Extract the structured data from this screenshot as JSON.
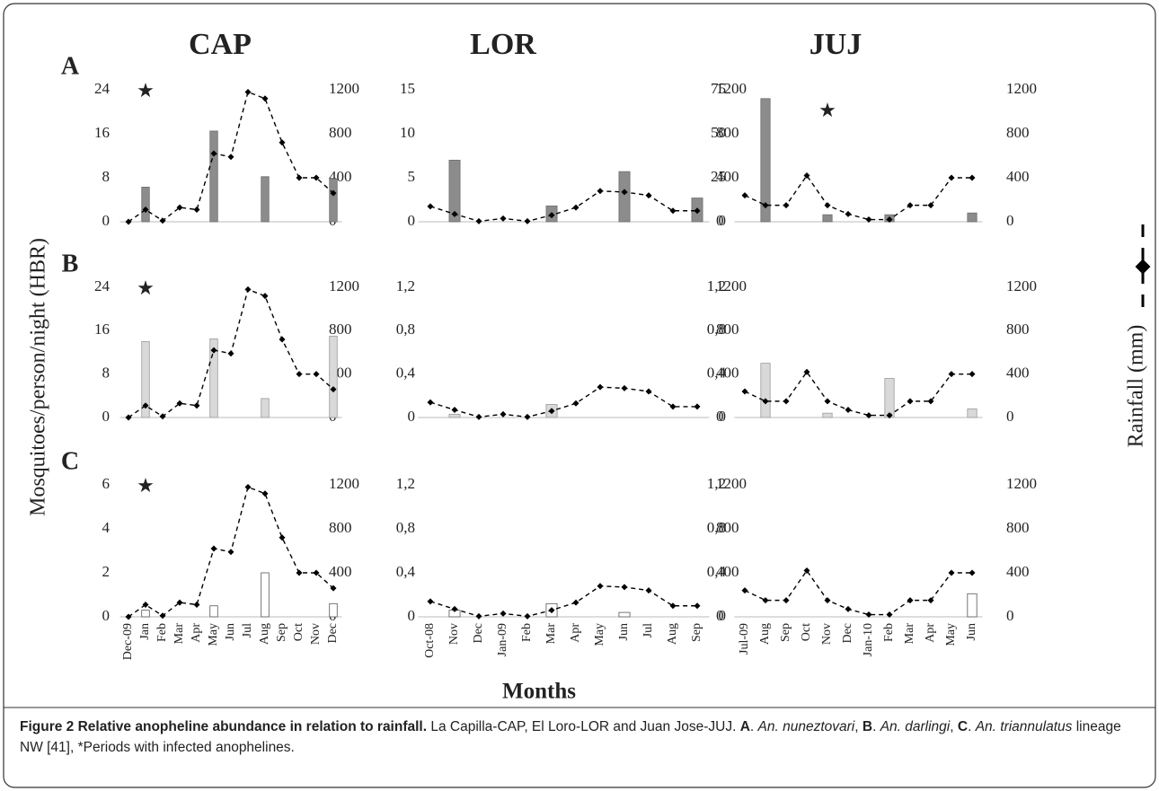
{
  "y_label": "Mosquitoes/person/night (HBR)",
  "y2_label": "Rainfall (mm)",
  "x_label": "Months",
  "caption": [
    {
      "text": "Figure 2 Relative anopheline abundance in relation to rainfall.",
      "style": "bold"
    },
    {
      "text": " La Capilla-CAP, El Loro-LOR and Juan Jose-JUJ. ",
      "style": "normal"
    },
    {
      "text": "A",
      "style": "bold"
    },
    {
      "text": ". ",
      "style": "normal"
    },
    {
      "text": "An. nuneztovari",
      "style": "italic"
    },
    {
      "text": ", ",
      "style": "normal"
    },
    {
      "text": "B",
      "style": "bold"
    },
    {
      "text": ". ",
      "style": "normal"
    },
    {
      "text": "An. darlingi",
      "style": "italic"
    },
    {
      "text": ", ",
      "style": "normal"
    },
    {
      "text": "C",
      "style": "bold"
    },
    {
      "text": ". ",
      "style": "normal"
    },
    {
      "text": "An. triannulatus",
      "style": "italic"
    },
    {
      "text": " lineage NW [41], *Periods with infected anophelines.",
      "style": "normal"
    }
  ],
  "chart_data": [
    {
      "type": "bar-line",
      "title": "CAP",
      "panel": "A",
      "categories": [
        "Dec-09",
        "Jan",
        "Feb",
        "Mar",
        "Apr",
        "May",
        "Jun",
        "Jul",
        "Aug",
        "Sep",
        "Oct",
        "Nov",
        "Dec"
      ],
      "series": [
        {
          "color": "#8c8c8c",
          "edgecolor": "#6e6e6e",
          "values": [
            0,
            6.3,
            0,
            0,
            0,
            16.5,
            0,
            0,
            8.2,
            0,
            0,
            0,
            7.8
          ]
        },
        {
          "color": "#000000",
          "axis": "y2",
          "values": [
            0,
            110,
            10,
            130,
            110,
            620,
            590,
            1180,
            1120,
            720,
            400,
            400,
            260
          ]
        }
      ],
      "ylim": [
        0,
        24
      ],
      "yticks": [
        0,
        8,
        16,
        24
      ],
      "y2lim": [
        0,
        1200
      ],
      "y2ticks": [
        0,
        400,
        800,
        1200
      ],
      "annotations": [
        {
          "text": "★",
          "category": "Jan"
        }
      ]
    },
    {
      "type": "bar-line",
      "title": "LOR",
      "categories": [
        "Oct-08",
        "Nov",
        "Dec",
        "Jan-09",
        "Feb",
        "Mar",
        "Apr",
        "May",
        "Jun",
        "Jul",
        "Aug",
        "Sep"
      ],
      "series": [
        {
          "color": "#8c8c8c",
          "edgecolor": "#6e6e6e",
          "values": [
            0,
            7,
            0,
            0,
            0,
            1.8,
            0,
            0,
            5.7,
            0,
            0,
            2.7
          ]
        },
        {
          "color": "#000000",
          "axis": "y2",
          "values": [
            140,
            70,
            5,
            30,
            5,
            60,
            130,
            280,
            270,
            240,
            100,
            100
          ]
        }
      ],
      "ylim": [
        0,
        15
      ],
      "yticks": [
        0,
        5,
        10,
        15
      ],
      "y2lim": [
        0,
        1200
      ],
      "y2ticks": [
        0,
        400,
        800,
        1200
      ]
    },
    {
      "type": "bar-line",
      "title": "JUJ",
      "categories": [
        "Jul-09",
        "Aug",
        "Sep",
        "Oct",
        "Nov",
        "Dec",
        "Jan-10",
        "Feb",
        "Mar",
        "Apr",
        "May",
        "Jun"
      ],
      "series": [
        {
          "color": "#8c8c8c",
          "edgecolor": "#6e6e6e",
          "values": [
            0,
            70,
            0,
            0,
            4,
            0,
            0,
            4,
            0,
            0,
            0,
            5
          ]
        },
        {
          "color": "#000000",
          "axis": "y2",
          "values": [
            240,
            150,
            150,
            420,
            150,
            70,
            20,
            20,
            150,
            150,
            400,
            400
          ]
        }
      ],
      "ylim": [
        0,
        75
      ],
      "yticks": [
        0,
        25,
        50,
        75
      ],
      "y2lim": [
        0,
        1200
      ],
      "y2ticks": [
        0,
        400,
        800,
        1200
      ],
      "annotations": [
        {
          "text": "★",
          "category": "Nov"
        }
      ]
    },
    {
      "type": "bar-line",
      "panel": "B",
      "categories": [
        "Dec-09",
        "Jan",
        "Feb",
        "Mar",
        "Apr",
        "May",
        "Jun",
        "Jul",
        "Aug",
        "Sep",
        "Oct",
        "Nov",
        "Dec"
      ],
      "series": [
        {
          "color": "#d9d9d9",
          "edgecolor": "#9a9a9a",
          "values": [
            0,
            14,
            0,
            0,
            0,
            14.5,
            0,
            0,
            3.5,
            0,
            0,
            0,
            15
          ]
        },
        {
          "color": "#000000",
          "axis": "y2",
          "values": [
            0,
            110,
            10,
            130,
            110,
            620,
            590,
            1180,
            1120,
            720,
            400,
            400,
            260
          ]
        }
      ],
      "ylim": [
        0,
        24
      ],
      "yticks": [
        0,
        8,
        16,
        24
      ],
      "y2lim": [
        0,
        1200
      ],
      "y2ticks": [
        0,
        400,
        800,
        1200
      ],
      "annotations": [
        {
          "text": "★",
          "category": "Jan"
        }
      ]
    },
    {
      "type": "bar-line",
      "categories": [
        "Oct-08",
        "Nov",
        "Dec",
        "Jan-09",
        "Feb",
        "Mar",
        "Apr",
        "May",
        "Jun",
        "Jul",
        "Aug",
        "Sep"
      ],
      "series": [
        {
          "color": "#d9d9d9",
          "edgecolor": "#9a9a9a",
          "values": [
            0,
            0.03,
            0,
            0,
            0,
            0.12,
            0,
            0,
            0,
            0,
            0,
            0
          ]
        },
        {
          "color": "#000000",
          "axis": "y2",
          "values": [
            140,
            70,
            5,
            30,
            5,
            60,
            130,
            280,
            270,
            240,
            100,
            100
          ]
        }
      ],
      "ylim": [
        0,
        1.2
      ],
      "yticks": [
        0,
        {
          "value": 0.4,
          "label": "0,4"
        },
        {
          "value": 0.8,
          "label": "0,8"
        },
        {
          "value": 1.2,
          "label": "1,2"
        }
      ],
      "y2lim": [
        0,
        1200
      ],
      "y2ticks": [
        0,
        400,
        800,
        1200
      ]
    },
    {
      "type": "bar-line",
      "categories": [
        "Jul-09",
        "Aug",
        "Sep",
        "Oct",
        "Nov",
        "Dec",
        "Jan-10",
        "Feb",
        "Mar",
        "Apr",
        "May",
        "Jun"
      ],
      "series": [
        {
          "color": "#d9d9d9",
          "edgecolor": "#9a9a9a",
          "values": [
            0,
            0.5,
            0,
            0,
            0.04,
            0,
            0,
            0.36,
            0,
            0,
            0,
            0.08
          ]
        },
        {
          "color": "#000000",
          "axis": "y2",
          "values": [
            240,
            150,
            150,
            420,
            150,
            70,
            20,
            20,
            150,
            150,
            400,
            400
          ]
        }
      ],
      "ylim": [
        0,
        1.2
      ],
      "yticks": [
        0,
        {
          "value": 0.4,
          "label": "0,4"
        },
        {
          "value": 0.8,
          "label": "0,8"
        },
        {
          "value": 1.2,
          "label": "1,2"
        }
      ],
      "y2lim": [
        0,
        1200
      ],
      "y2ticks": [
        0,
        400,
        800,
        1200
      ]
    },
    {
      "type": "bar-line",
      "panel": "C",
      "categories": [
        "Dec-09",
        "Jan",
        "Feb",
        "Mar",
        "Apr",
        "May",
        "Jun",
        "Jul",
        "Aug",
        "Sep",
        "Oct",
        "Nov",
        "Dec"
      ],
      "series": [
        {
          "color": "#ffffff",
          "edgecolor": "#555555",
          "values": [
            0,
            0.3,
            0,
            0,
            0,
            0.5,
            0,
            0,
            2,
            0,
            0,
            0,
            0.6
          ]
        },
        {
          "color": "#000000",
          "axis": "y2",
          "values": [
            0,
            110,
            10,
            130,
            110,
            620,
            590,
            1180,
            1120,
            720,
            400,
            400,
            260
          ]
        }
      ],
      "ylim": [
        0,
        6
      ],
      "yticks": [
        0,
        2,
        4,
        6
      ],
      "y2lim": [
        0,
        1200
      ],
      "y2ticks": [
        0,
        400,
        800,
        1200
      ],
      "annotations": [
        {
          "text": "★",
          "category": "Jan"
        }
      ]
    },
    {
      "type": "bar-line",
      "categories": [
        "Oct-08",
        "Nov",
        "Dec",
        "Jan-09",
        "Feb",
        "Mar",
        "Apr",
        "May",
        "Jun",
        "Jul",
        "Aug",
        "Sep"
      ],
      "series": [
        {
          "color": "#ffffff",
          "edgecolor": "#555555",
          "values": [
            0,
            0.06,
            0,
            0,
            0,
            0.12,
            0,
            0,
            0.04,
            0,
            0,
            0
          ]
        },
        {
          "color": "#000000",
          "axis": "y2",
          "values": [
            140,
            70,
            5,
            30,
            5,
            60,
            130,
            280,
            270,
            240,
            100,
            100
          ]
        }
      ],
      "ylim": [
        0,
        1.2
      ],
      "yticks": [
        0,
        {
          "value": 0.4,
          "label": "0,4"
        },
        {
          "value": 0.8,
          "label": "0,8"
        },
        {
          "value": 1.2,
          "label": "1,2"
        }
      ],
      "y2lim": [
        0,
        1200
      ],
      "y2ticks": [
        0,
        400,
        800,
        1200
      ]
    },
    {
      "type": "bar-line",
      "categories": [
        "Jul-09",
        "Aug",
        "Sep",
        "Oct",
        "Nov",
        "Dec",
        "Jan-10",
        "Feb",
        "Mar",
        "Apr",
        "May",
        "Jun"
      ],
      "series": [
        {
          "color": "#ffffff",
          "edgecolor": "#555555",
          "values": [
            0,
            0,
            0,
            0,
            0,
            0,
            0,
            0,
            0,
            0,
            0,
            0.21
          ]
        },
        {
          "color": "#000000",
          "axis": "y2",
          "values": [
            240,
            150,
            150,
            420,
            150,
            70,
            20,
            20,
            150,
            150,
            400,
            400
          ]
        }
      ],
      "ylim": [
        0,
        1.2
      ],
      "yticks": [
        0,
        {
          "value": 0.4,
          "label": "0,4"
        },
        {
          "value": 0.8,
          "label": "0,8"
        },
        {
          "value": 1.2,
          "label": "1,2"
        }
      ],
      "y2lim": [
        0,
        1200
      ],
      "y2ticks": [
        0,
        400,
        800,
        1200
      ]
    }
  ]
}
